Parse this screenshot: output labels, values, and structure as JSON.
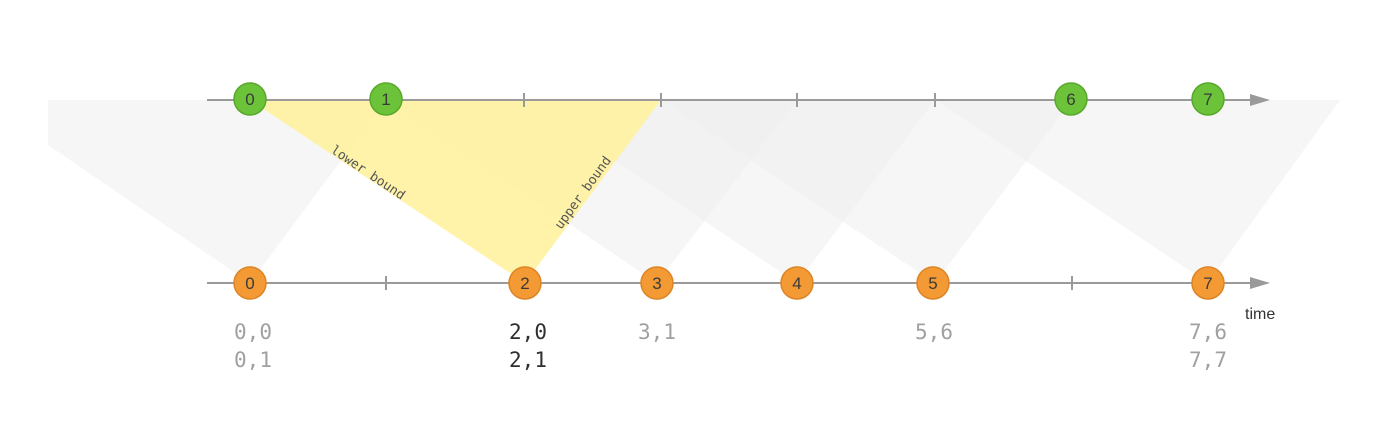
{
  "colors": {
    "top_node": "#6cc33a",
    "top_node_stroke": "#58a82c",
    "bottom_node": "#f39a34",
    "bottom_node_stroke": "#dd8424",
    "highlight_band": "#fff2a0",
    "band": "#eeeeee",
    "axis": "#9a9a9a",
    "label_dim": "#a0a0a0",
    "label_bold": "#2f2f2f"
  },
  "top_stream": {
    "nodes": [
      "0",
      "1",
      "6",
      "7"
    ]
  },
  "bottom_stream": {
    "nodes": [
      "0",
      "2",
      "3",
      "4",
      "5",
      "7"
    ]
  },
  "band_labels": {
    "lower": "lower bound",
    "upper": "upper bound"
  },
  "axis_label": "time",
  "join_results": [
    {
      "lines": [
        "0,0",
        "0,1"
      ],
      "emphasis": false
    },
    {
      "lines": [
        "2,0",
        "2,1"
      ],
      "emphasis": true
    },
    {
      "lines": [
        "3,1"
      ],
      "emphasis": false
    },
    {
      "lines": [
        "5,6"
      ],
      "emphasis": false
    },
    {
      "lines": [
        "7,6",
        "7,7"
      ],
      "emphasis": false
    }
  ]
}
